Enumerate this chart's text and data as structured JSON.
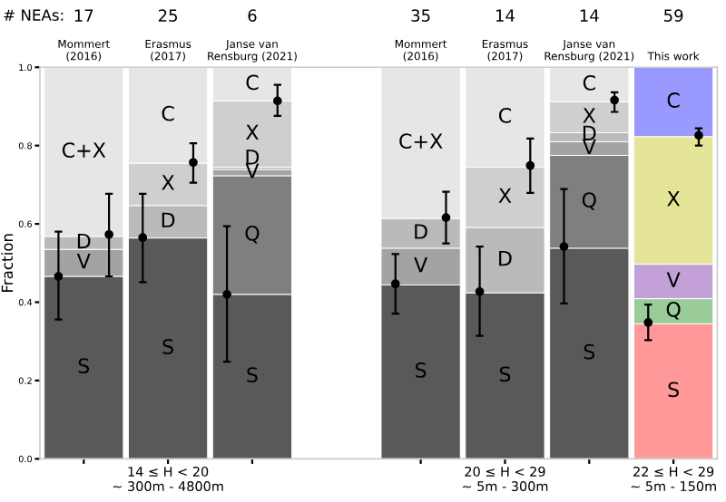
{
  "chart_data": {
    "type": "bar",
    "stacked": true,
    "ylabel": "Fraction",
    "categories": [
      "Mommert\n(2016)",
      "Erasmus\n(2017)",
      "Janse van\nRensburg (2021)",
      null,
      "Mommert\n(2016)",
      "Erasmus\n(2017)",
      "Janse van\nRensburg (2021)",
      "This work"
    ],
    "ylim": [
      0,
      1
    ],
    "yticks": [
      {
        "value": 0,
        "label": "0.0"
      },
      {
        "value": 0.2,
        "label": "0.2"
      },
      {
        "value": 0.4,
        "label": "0.4"
      },
      {
        "value": 0.6,
        "label": "0.6"
      },
      {
        "value": 0.8,
        "label": "0.8"
      },
      {
        "value": 1,
        "label": "1.0"
      }
    ],
    "series": [
      {
        "name": "S",
        "values": [
          0.466,
          0.564,
          0.42,
          null,
          0.444,
          0.424,
          0.538,
          0.345
        ],
        "colors": [
          "#595959",
          "#595959",
          "#595959",
          "#595959",
          "#595959",
          "#595959",
          "#595959",
          "#ff9999"
        ]
      },
      {
        "name": "Q",
        "values": [
          null,
          null,
          0.303,
          null,
          null,
          null,
          0.237,
          0.064
        ],
        "colors": [
          "#7f7f7f",
          "#7f7f7f",
          "#7f7f7f",
          "#7f7f7f",
          "#7f7f7f",
          "#7f7f7f",
          "#7f7f7f",
          "#99cc99"
        ]
      },
      {
        "name": "V",
        "values": [
          0.069,
          null,
          0.016,
          null,
          0.094,
          null,
          0.035,
          0.088
        ],
        "colors": [
          "#a3a3a3",
          "#a3a3a3",
          "#a3a3a3",
          "#a3a3a3",
          "#a3a3a3",
          "#a3a3a3",
          "#a3a3a3",
          "#c3a0d8"
        ]
      },
      {
        "name": "D",
        "values": [
          0.033,
          0.083,
          0.006,
          null,
          0.076,
          0.167,
          0.023,
          null
        ],
        "colors": [
          "#bababa",
          "#bababa",
          "#bababa",
          "#bababa",
          "#bababa",
          "#bababa",
          "#bababa",
          "#bababa"
        ]
      },
      {
        "name": "X",
        "values": [
          null,
          0.108,
          0.169,
          null,
          null,
          0.154,
          0.079,
          0.326
        ],
        "colors": [
          "#cfcfcf",
          "#cfcfcf",
          "#cfcfcf",
          "#cfcfcf",
          "#cfcfcf",
          "#cfcfcf",
          "#cfcfcf",
          "#e5e599"
        ]
      },
      {
        "name": "C",
        "values": [
          null,
          0.245,
          0.086,
          null,
          null,
          0.255,
          0.088,
          0.177
        ],
        "colors": [
          "#e6e6e6",
          "#e6e6e6",
          "#e6e6e6",
          "#e6e6e6",
          "#e6e6e6",
          "#e6e6e6",
          "#e6e6e6",
          "#9999ff"
        ]
      },
      {
        "name": "C+X",
        "values": [
          0.432,
          null,
          null,
          null,
          0.386,
          null,
          null,
          null
        ],
        "colors": [
          "#e6e6e6",
          "#e6e6e6",
          "#e6e6e6",
          "#e6e6e6",
          "#e6e6e6",
          "#e6e6e6",
          "#e6e6e6",
          "#e6e6e6"
        ]
      },
      {
        "type": "scatter",
        "marker": "circle",
        "color": "#000000",
        "values": [
          0.466,
          0.565,
          0.42,
          null,
          0.447,
          0.427,
          0.542,
          0.348
        ],
        "errors": [
          [
            0.356,
            0.58
          ],
          [
            0.451,
            0.677
          ],
          [
            0.248,
            0.594
          ],
          null,
          [
            0.371,
            0.523
          ],
          [
            0.314,
            0.542
          ],
          [
            0.397,
            0.689
          ],
          [
            0.303,
            0.394
          ]
        ]
      },
      {
        "type": "scatter",
        "marker": "circle",
        "color": "#000000",
        "values": [
          0.573,
          0.757,
          0.914,
          null,
          0.616,
          0.749,
          0.916,
          0.826
        ],
        "errors": [
          [
            0.466,
            0.677
          ],
          [
            0.705,
            0.806
          ],
          [
            0.876,
            0.955
          ],
          null,
          [
            0.55,
            0.682
          ],
          [
            0.679,
            0.818
          ],
          [
            0.886,
            0.936
          ],
          [
            0.8,
            0.844
          ]
        ]
      }
    ],
    "annotations": [
      "# NEAs:",
      "17",
      "25",
      "6",
      "35",
      "14",
      "14",
      "59",
      "14 ≤ H < 20\n~ 300m - 4800m",
      "20 ≤ H < 29\n~ 5m - 300m",
      "22 ≤ H < 29\n~ 5m - 150m"
    ]
  }
}
